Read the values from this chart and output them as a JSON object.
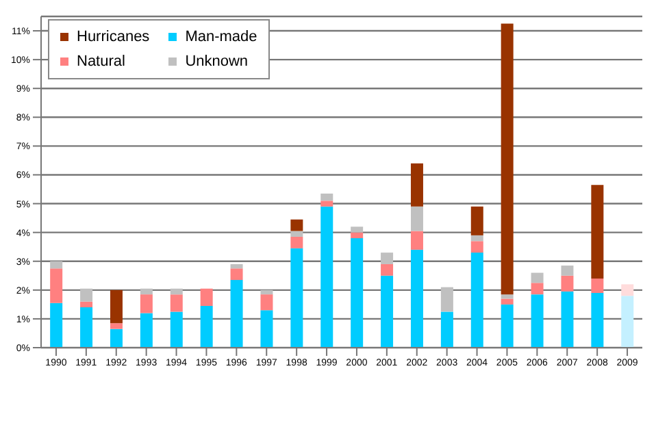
{
  "chart_data": {
    "type": "bar",
    "stacked": true,
    "categories": [
      "1990",
      "1991",
      "1992",
      "1993",
      "1994",
      "1995",
      "1996",
      "1997",
      "1998",
      "1999",
      "2000",
      "2001",
      "2002",
      "2003",
      "2004",
      "2005",
      "2006",
      "2007",
      "2008",
      "2009"
    ],
    "series": [
      {
        "name": "Man-made",
        "color": "#00ccff",
        "colors": [
          "#00ccff",
          "#00ccff",
          "#00ccff",
          "#00ccff",
          "#00ccff",
          "#00ccff",
          "#00ccff",
          "#00ccff",
          "#00ccff",
          "#00ccff",
          "#00ccff",
          "#00ccff",
          "#00ccff",
          "#00ccff",
          "#00ccff",
          "#00ccff",
          "#00ccff",
          "#00ccff",
          "#00ccff",
          "#c4f0ff"
        ],
        "values": [
          1.55,
          1.4,
          0.65,
          1.2,
          1.25,
          1.45,
          2.35,
          1.3,
          3.45,
          4.9,
          3.8,
          2.5,
          3.4,
          1.25,
          3.3,
          1.5,
          1.85,
          1.95,
          1.9,
          1.8
        ]
      },
      {
        "name": "Natural",
        "color": "#ff8080",
        "colors": [
          "#ff8080",
          "#ff8080",
          "#ff8080",
          "#ff8080",
          "#ff8080",
          "#ff8080",
          "#ff8080",
          "#ff8080",
          "#ff8080",
          "#ff8080",
          "#ff8080",
          "#ff8080",
          "#ff8080",
          "#ff8080",
          "#ff8080",
          "#ff8080",
          "#ff8080",
          "#ff8080",
          "#ff8080",
          "#ffdcdc"
        ],
        "values": [
          1.2,
          0.2,
          0.2,
          0.65,
          0.6,
          0.6,
          0.4,
          0.55,
          0.4,
          0.2,
          0.2,
          0.4,
          0.65,
          0,
          0.4,
          0.2,
          0.4,
          0.55,
          0.5,
          0.4
        ]
      },
      {
        "name": "Unknown",
        "color": "#c0c0c0",
        "values": [
          0.25,
          0.45,
          0,
          0.2,
          0.2,
          0,
          0.15,
          0.15,
          0.2,
          0.25,
          0.2,
          0.4,
          0.85,
          0.85,
          0.2,
          0.15,
          0.35,
          0.35,
          0,
          0
        ]
      },
      {
        "name": "Hurricanes",
        "color": "#993300",
        "values": [
          0,
          0,
          1.15,
          0,
          0,
          0,
          0,
          0,
          0.4,
          0,
          0,
          0,
          1.5,
          0,
          1.0,
          9.4,
          0,
          0,
          3.25,
          0
        ]
      }
    ],
    "ylim": [
      0,
      11.5
    ],
    "yticks": [
      {
        "value": 0,
        "label": "0%"
      },
      {
        "value": 1,
        "label": "1%"
      },
      {
        "value": 2,
        "label": "2%"
      },
      {
        "value": 3,
        "label": "3%"
      },
      {
        "value": 4,
        "label": "4%"
      },
      {
        "value": 5,
        "label": "5%"
      },
      {
        "value": 6,
        "label": "6%"
      },
      {
        "value": 7,
        "label": "7%"
      },
      {
        "value": 8,
        "label": "8%"
      },
      {
        "value": 9,
        "label": "9%"
      },
      {
        "value": 10,
        "label": "10%"
      },
      {
        "value": 11,
        "label": "11%"
      }
    ],
    "grid": "y",
    "legend": "top left"
  }
}
